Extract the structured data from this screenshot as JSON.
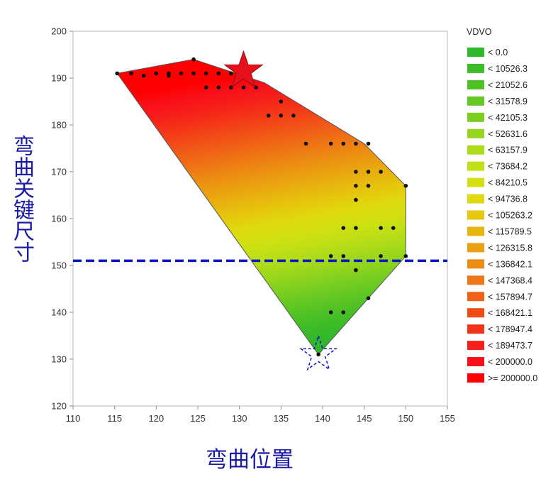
{
  "chart_data": {
    "type": "contour",
    "xlabel": "弯曲位置",
    "ylabel": "弯曲关键尺寸",
    "xlim": [
      110,
      155
    ],
    "ylim": [
      120,
      200
    ],
    "xticks": [
      "110",
      "115",
      "120",
      "125",
      "130",
      "135",
      "140",
      "145",
      "150",
      "155"
    ],
    "yticks": [
      "120",
      "130",
      "140",
      "150",
      "160",
      "170",
      "180",
      "190",
      "200"
    ],
    "legend": {
      "title": "VDVO",
      "position": "right",
      "entries": [
        {
          "label": "< 0.0",
          "color": "#2fb82a"
        },
        {
          "label": "< 10526.3",
          "color": "#3cbc27"
        },
        {
          "label": "< 21052.6",
          "color": "#4ec125"
        },
        {
          "label": "< 31578.9",
          "color": "#64c823"
        },
        {
          "label": "< 42105.3",
          "color": "#7ccf20"
        },
        {
          "label": "< 52631.6",
          "color": "#95d51d"
        },
        {
          "label": "< 63157.9",
          "color": "#acdb19"
        },
        {
          "label": "< 73684.2",
          "color": "#c2df15"
        },
        {
          "label": "< 84210.5",
          "color": "#d3e011"
        },
        {
          "label": "< 94736.8",
          "color": "#dfd90e"
        },
        {
          "label": "< 105263.2",
          "color": "#e5c70d"
        },
        {
          "label": "< 115789.5",
          "color": "#e8b40e"
        },
        {
          "label": "< 126315.8",
          "color": "#eaa010"
        },
        {
          "label": "< 136842.1",
          "color": "#ec8c12"
        },
        {
          "label": "< 147368.4",
          "color": "#ee7614"
        },
        {
          "label": "< 157894.7",
          "color": "#f06016"
        },
        {
          "label": "< 168421.1",
          "color": "#f24a17"
        },
        {
          "label": "< 178947.4",
          "color": "#f43418"
        },
        {
          "label": "< 189473.7",
          "color": "#f61f19"
        },
        {
          "label": "< 200000.0",
          "color": "#f8101a"
        },
        {
          "label": ">= 200000.0",
          "color": "#ff0000"
        }
      ]
    },
    "hull": [
      [
        115.3,
        191
      ],
      [
        124.5,
        194
      ],
      [
        133,
        189
      ],
      [
        145,
        176
      ],
      [
        150,
        167
      ],
      [
        150,
        152
      ],
      [
        139.5,
        131
      ]
    ],
    "points": [
      [
        115.3,
        191
      ],
      [
        117,
        191
      ],
      [
        118.5,
        190.5
      ],
      [
        120,
        191
      ],
      [
        121.5,
        191
      ],
      [
        121.5,
        190.5
      ],
      [
        123,
        191
      ],
      [
        124.5,
        191
      ],
      [
        124.5,
        194
      ],
      [
        126,
        191
      ],
      [
        126,
        188
      ],
      [
        127.5,
        191
      ],
      [
        127.5,
        188
      ],
      [
        129,
        191
      ],
      [
        129,
        188
      ],
      [
        130.5,
        188
      ],
      [
        132,
        188
      ],
      [
        133.5,
        182
      ],
      [
        135,
        182
      ],
      [
        135,
        185
      ],
      [
        136.5,
        182
      ],
      [
        138,
        176
      ],
      [
        141,
        176
      ],
      [
        142.5,
        176
      ],
      [
        144,
        176
      ],
      [
        145.5,
        176
      ],
      [
        144,
        170
      ],
      [
        145.5,
        170
      ],
      [
        147,
        170
      ],
      [
        144,
        167
      ],
      [
        145.5,
        167
      ],
      [
        144,
        164
      ],
      [
        150,
        167
      ],
      [
        142.5,
        158
      ],
      [
        144,
        158
      ],
      [
        147,
        158
      ],
      [
        148.5,
        158
      ],
      [
        141,
        152
      ],
      [
        142.5,
        152
      ],
      [
        147,
        152
      ],
      [
        150,
        152
      ],
      [
        144,
        149
      ],
      [
        145.5,
        143
      ],
      [
        141,
        140
      ],
      [
        142.5,
        140
      ],
      [
        139.5,
        131
      ]
    ],
    "reference_line": {
      "y": 151,
      "color": "#0a14c8",
      "style": "dashed"
    },
    "markers": [
      {
        "shape": "star",
        "style": "filled",
        "x": 130.5,
        "y": 191.5,
        "color": "#e8101a"
      },
      {
        "shape": "star",
        "style": "dashed-outline",
        "x": 139.5,
        "y": 131,
        "color": "#0a14c8"
      }
    ],
    "grid": false
  }
}
